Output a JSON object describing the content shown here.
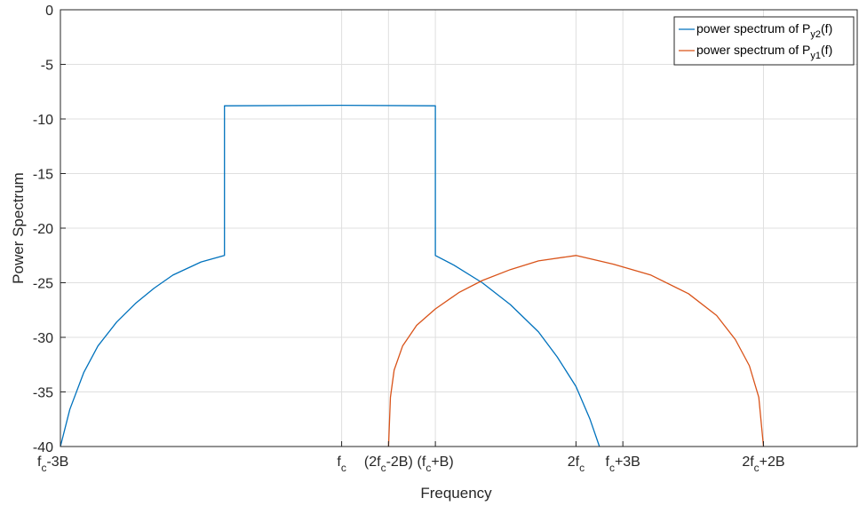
{
  "chart_data": {
    "type": "line",
    "xlabel": "Frequency",
    "ylabel": "Power Spectrum",
    "ylim": [
      -40,
      0
    ],
    "xlim": [
      -3,
      5.5
    ],
    "y_ticks": [
      0,
      -5,
      -10,
      -15,
      -20,
      -25,
      -30,
      -35,
      -40
    ],
    "x_ticks": [
      {
        "value": -3,
        "base": "f",
        "sub": "c",
        "rest": "-3B",
        "anchor": "start"
      },
      {
        "value": 0,
        "base": "f",
        "sub": "c",
        "rest": "",
        "anchor": "middle"
      },
      {
        "value": 0.5,
        "base": "(2f",
        "sub": "c",
        "rest": "-2B)",
        "anchor": "middle"
      },
      {
        "value": 1,
        "base": "(f",
        "sub": "c",
        "rest": "+B)",
        "anchor": "middle"
      },
      {
        "value": 2.5,
        "base": "2f",
        "sub": "c",
        "rest": "",
        "anchor": "middle"
      },
      {
        "value": 3,
        "base": "f",
        "sub": "c",
        "rest": "+3B",
        "anchor": "middle"
      },
      {
        "value": 4.5,
        "base": "2f",
        "sub": "c",
        "rest": "+2B",
        "anchor": "middle"
      }
    ],
    "grid": true,
    "legend_position": "top-right",
    "series": [
      {
        "name_base": "power spectrum of P",
        "name_sub": "y2",
        "name_rest": "(f)",
        "color": "#0072BD",
        "points": [
          [
            -3.0,
            -40
          ],
          [
            -2.9,
            -36.6
          ],
          [
            -2.75,
            -33.2
          ],
          [
            -2.6,
            -30.8
          ],
          [
            -2.4,
            -28.6
          ],
          [
            -2.2,
            -26.9
          ],
          [
            -2.0,
            -25.5
          ],
          [
            -1.8,
            -24.3
          ],
          [
            -1.5,
            -23.1
          ],
          [
            -1.25,
            -22.5
          ],
          [
            -1.25,
            -8.8
          ],
          [
            0.0,
            -8.75
          ],
          [
            1.0,
            -8.8
          ],
          [
            1.0,
            -22.5
          ],
          [
            1.2,
            -23.4
          ],
          [
            1.5,
            -25.0
          ],
          [
            1.8,
            -27.0
          ],
          [
            2.1,
            -29.5
          ],
          [
            2.3,
            -31.8
          ],
          [
            2.5,
            -34.5
          ],
          [
            2.65,
            -37.5
          ],
          [
            2.75,
            -40
          ]
        ]
      },
      {
        "name_base": "power spectrum of P",
        "name_sub": "y1",
        "name_rest": "(f)",
        "color": "#D95319",
        "points": [
          [
            0.5,
            -40
          ],
          [
            0.52,
            -35.5
          ],
          [
            0.56,
            -33.0
          ],
          [
            0.65,
            -30.8
          ],
          [
            0.8,
            -28.9
          ],
          [
            1.0,
            -27.4
          ],
          [
            1.25,
            -25.9
          ],
          [
            1.5,
            -24.8
          ],
          [
            1.8,
            -23.8
          ],
          [
            2.1,
            -23.0
          ],
          [
            2.5,
            -22.5
          ],
          [
            2.9,
            -23.3
          ],
          [
            3.3,
            -24.3
          ],
          [
            3.7,
            -26.0
          ],
          [
            4.0,
            -28.0
          ],
          [
            4.2,
            -30.2
          ],
          [
            4.35,
            -32.6
          ],
          [
            4.45,
            -35.5
          ],
          [
            4.5,
            -40
          ]
        ]
      }
    ]
  }
}
